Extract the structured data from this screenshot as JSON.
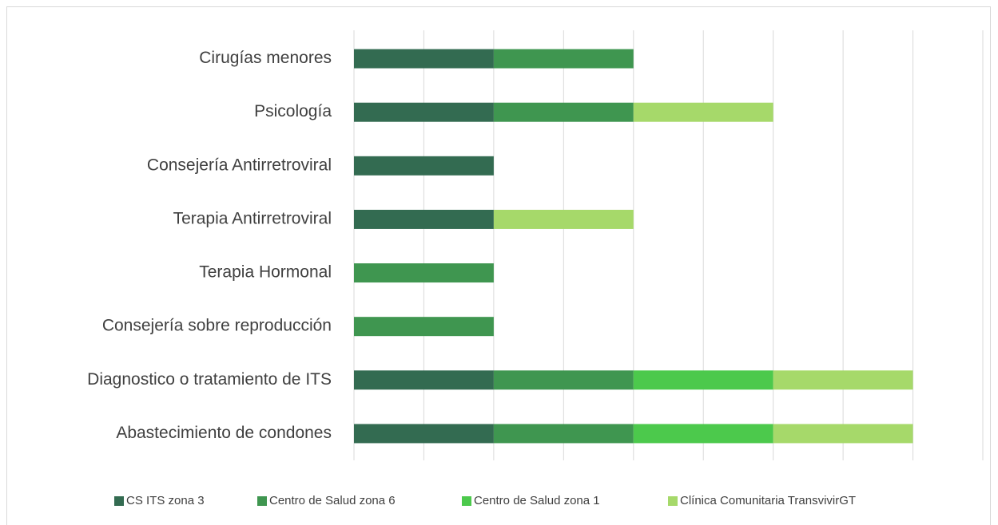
{
  "chart_data": {
    "type": "stacked_barh",
    "categories": [
      "Cirugías menores",
      "Psicología",
      "Consejería Antirretroviral",
      "Terapia Antirretroviral",
      "Terapia Hormonal",
      "Consejería sobre reproducción",
      "Diagnostico o tratamiento de ITS",
      "Abastecimiento de condones"
    ],
    "series": [
      {
        "name": "CS ITS zona 3",
        "color": "#336b51",
        "values": [
          1,
          1,
          1,
          1,
          0,
          0,
          1,
          1
        ]
      },
      {
        "name": "Centro de Salud zona 6",
        "color": "#3f9650",
        "values": [
          1,
          1,
          0,
          0,
          1,
          1,
          1,
          1
        ]
      },
      {
        "name": "Centro de Salud zona 1",
        "color": "#4cc94c",
        "values": [
          0,
          0,
          0,
          0,
          0,
          0,
          1,
          1
        ]
      },
      {
        "name": "Clínica Comunitaria TransvivirGT",
        "color": "#a6d96a",
        "values": [
          0,
          1,
          0,
          1,
          0,
          0,
          1,
          1
        ]
      }
    ],
    "xlim": [
      0,
      4.5
    ],
    "xticks": [
      0,
      0.5,
      1,
      1.5,
      2,
      2.5,
      3,
      3.5,
      4,
      4.5
    ],
    "grid": true,
    "legend": "bottom"
  }
}
